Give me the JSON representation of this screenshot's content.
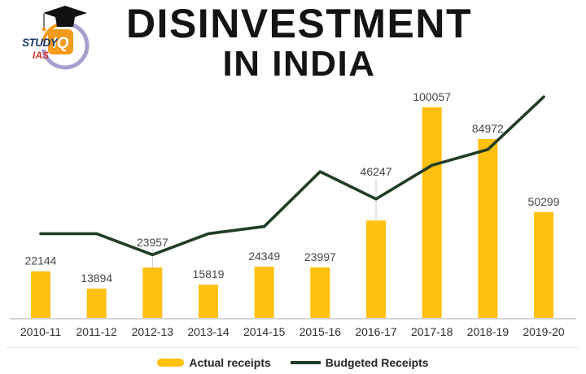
{
  "logo": {
    "study": "STUDY",
    "iq": "IQ",
    "ias": "IAS"
  },
  "title": {
    "line1": "DISINVESTMENT",
    "line2": "IN INDIA"
  },
  "legend": {
    "items": [
      {
        "label": "Actual receipts",
        "swatch": "bar-swatch",
        "color": "#FFC010"
      },
      {
        "label": "Budgeted Receipts",
        "swatch": "line-swatch",
        "color": "#223D25"
      }
    ]
  },
  "colors": {
    "bar": "#FFC010",
    "line": "#223D25",
    "title": "#141414",
    "value_label": "#474747",
    "axis_label": "#2e2e2e",
    "axis_line": "#c6c6c6",
    "leader_line": "#c7ccd4",
    "logo_ring": "#a79fd0",
    "logo_orange": "#f49b1b",
    "logo_navy": "#1e3a6e",
    "logo_red": "#d2342a"
  },
  "chart_data": {
    "type": "bar",
    "title": "DISINVESTMENT IN INDIA",
    "categories": [
      "2010-11",
      "2011-12",
      "2012-13",
      "2013-14",
      "2014-15",
      "2015-16",
      "2016-17",
      "2017-18",
      "2018-19",
      "2019-20"
    ],
    "series": [
      {
        "name": "Actual receipts",
        "type": "bar",
        "color": "#FFC010",
        "values": [
          22144,
          13894,
          23957,
          15819,
          24349,
          23997,
          46247,
          100057,
          84972,
          50299
        ],
        "data_labels_shown": true
      },
      {
        "name": "Budgeted Receipts",
        "type": "line",
        "color": "#223D25",
        "values": [
          40000,
          40000,
          30000,
          40000,
          43425,
          69500,
          56500,
          72500,
          80000,
          105000
        ],
        "values_estimated_from_pixels": true,
        "data_labels_shown": false
      }
    ],
    "xlabel": "",
    "ylabel": "",
    "ylim": [
      0,
      110000
    ],
    "grid": false,
    "y_axis_shown": false,
    "legend_position": "bottom"
  }
}
